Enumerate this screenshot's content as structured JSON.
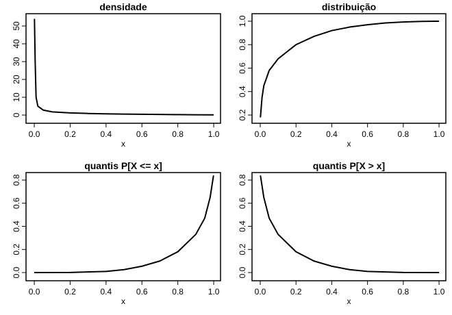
{
  "chart_data": [
    {
      "type": "line",
      "title": "densidade",
      "xlabel": "x",
      "color": "#000000",
      "x": [
        0.001,
        0.005,
        0.01,
        0.02,
        0.05,
        0.1,
        0.2,
        0.3,
        0.4,
        0.5,
        0.6,
        0.7,
        0.8,
        0.9,
        1.0
      ],
      "values": [
        54,
        30,
        10,
        5,
        2.8,
        1.8,
        1.2,
        0.9,
        0.7,
        0.55,
        0.45,
        0.35,
        0.25,
        0.15,
        0.1
      ],
      "xlim": [
        -0.046,
        1.038
      ],
      "ylim": [
        -4.6,
        56.9
      ],
      "xticks": [
        {
          "value": 0,
          "label": "0.0"
        },
        0.2,
        0.4,
        0.6,
        0.8,
        {
          "value": 1,
          "label": "1.0"
        }
      ],
      "yticks": [
        0,
        10,
        20,
        30,
        40,
        50
      ]
    },
    {
      "type": "line",
      "title": "distribuição",
      "xlabel": "x",
      "color": "#000000",
      "x": [
        0.001,
        0.01,
        0.02,
        0.05,
        0.1,
        0.2,
        0.3,
        0.4,
        0.5,
        0.6,
        0.7,
        0.8,
        0.9,
        1.0
      ],
      "values": [
        0.18,
        0.35,
        0.45,
        0.58,
        0.68,
        0.8,
        0.87,
        0.92,
        0.95,
        0.97,
        0.985,
        0.993,
        0.998,
        1.0
      ],
      "xlim": [
        -0.046,
        1.038
      ],
      "ylim": [
        0.13,
        1.064
      ],
      "xticks": [
        {
          "value": 0,
          "label": "0.0"
        },
        0.2,
        0.4,
        0.6,
        0.8,
        {
          "value": 1,
          "label": "1.0"
        }
      ],
      "yticks": [
        0.2,
        0.4,
        0.6,
        0.8,
        {
          "value": 1,
          "label": "1.0"
        }
      ]
    },
    {
      "type": "line",
      "title": "quantis P[X <= x]",
      "xlabel": "x",
      "color": "#000000",
      "x": [
        0.0,
        0.2,
        0.4,
        0.5,
        0.6,
        0.7,
        0.8,
        0.9,
        0.95,
        0.98,
        0.999
      ],
      "values": [
        0.0,
        0.0005,
        0.01,
        0.025,
        0.055,
        0.1,
        0.18,
        0.33,
        0.47,
        0.65,
        0.84
      ],
      "xlim": [
        -0.046,
        1.038
      ],
      "ylim": [
        -0.071,
        0.865
      ],
      "xticks": [
        {
          "value": 0,
          "label": "0.0"
        },
        0.2,
        0.4,
        0.6,
        0.8,
        {
          "value": 1,
          "label": "1.0"
        }
      ],
      "yticks": [
        {
          "value": 0,
          "label": "0.0"
        },
        0.2,
        0.4,
        0.6,
        0.8
      ]
    },
    {
      "type": "line",
      "title": "quantis P[X > x]",
      "xlabel": "x",
      "color": "#000000",
      "x": [
        0.001,
        0.02,
        0.05,
        0.1,
        0.2,
        0.3,
        0.4,
        0.5,
        0.6,
        0.8,
        1.0
      ],
      "values": [
        0.84,
        0.65,
        0.47,
        0.33,
        0.18,
        0.1,
        0.055,
        0.025,
        0.01,
        0.0005,
        0.0
      ],
      "xlim": [
        -0.046,
        1.038
      ],
      "ylim": [
        -0.071,
        0.865
      ],
      "xticks": [
        {
          "value": 0,
          "label": "0.0"
        },
        0.2,
        0.4,
        0.6,
        0.8,
        {
          "value": 1,
          "label": "1.0"
        }
      ],
      "yticks": [
        {
          "value": 0,
          "label": "0.0"
        },
        0.2,
        0.4,
        0.6,
        0.8
      ]
    }
  ]
}
